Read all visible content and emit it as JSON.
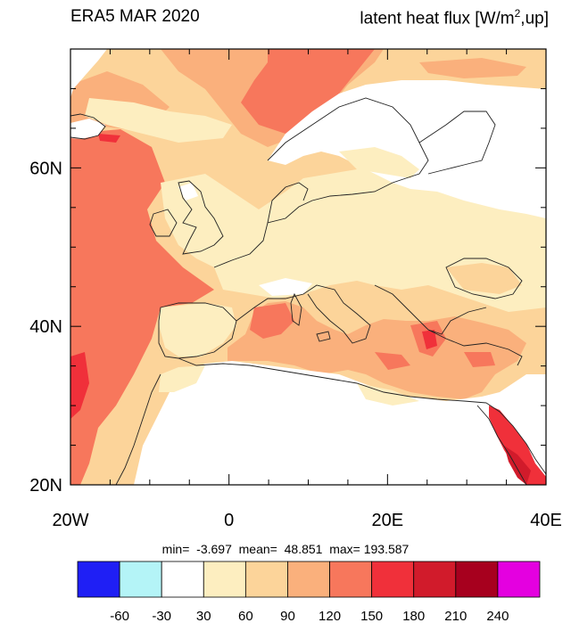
{
  "title_left": "ERA5 MAR 2020",
  "title_right_main": "latent heat flux [W/m",
  "title_right_sup": "2",
  "title_right_tail": ",up]",
  "stats": "min=  -3.697  mean=  48.851  max= 193.587",
  "map": {
    "lon_range": [
      -20,
      40
    ],
    "lat_range": [
      20,
      75
    ],
    "x_ticks": [
      {
        "lon": -20,
        "label": "20W"
      },
      {
        "lon": 0,
        "label": "0"
      },
      {
        "lon": 20,
        "label": "20E"
      },
      {
        "lon": 40,
        "label": "40E"
      }
    ],
    "y_ticks": [
      {
        "lat": 20,
        "label": "20N"
      },
      {
        "lat": 40,
        "label": "40N"
      },
      {
        "lat": 60,
        "label": "60N"
      }
    ]
  },
  "colorbar": {
    "colors": [
      "#1f1ff5",
      "#b4f4f7",
      "#ffffff",
      "#fdeec0",
      "#fcd49a",
      "#fab07c",
      "#f7775c",
      "#f0303a",
      "#d11b2b",
      "#a7001e",
      "#e400e0"
    ],
    "labels": [
      "-60",
      "-30",
      "30",
      "60",
      "90",
      "120",
      "150",
      "180",
      "210",
      "240"
    ]
  },
  "chart_data": {
    "type": "heatmap",
    "variable": "latent heat flux [W/m2,up]",
    "period": "ERA5 MAR 2020",
    "x_range": [
      -20,
      40
    ],
    "y_range": [
      20,
      75
    ],
    "min": -3.697,
    "mean": 48.851,
    "max": 193.587,
    "levels": [
      -60,
      -30,
      30,
      60,
      90,
      120,
      150,
      180,
      210,
      240
    ]
  }
}
